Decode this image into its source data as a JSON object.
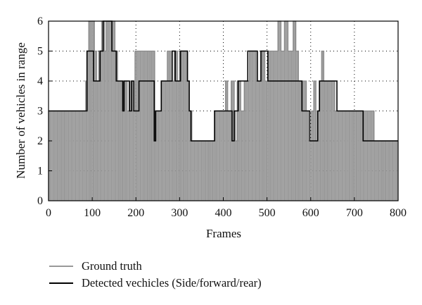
{
  "chart_data": {
    "type": "line",
    "xlabel": "Frames",
    "ylabel": "Number of vehicles in range",
    "xlim": [
      0,
      800
    ],
    "ylim": [
      0,
      6
    ],
    "xticks": [
      0,
      100,
      200,
      300,
      400,
      500,
      600,
      700,
      800
    ],
    "yticks": [
      0,
      1,
      2,
      3,
      4,
      5,
      6
    ],
    "grid": true,
    "legend_position": "bottom-left, below plot",
    "series": [
      {
        "name": "Ground truth",
        "color": "#999999",
        "render": "dense vertical bars (filled step)",
        "steps": [
          [
            0,
            3
          ],
          [
            80,
            3
          ],
          [
            85,
            4
          ],
          [
            88,
            5
          ],
          [
            92,
            6
          ],
          [
            105,
            5
          ],
          [
            110,
            4
          ],
          [
            115,
            5
          ],
          [
            122,
            6
          ],
          [
            128,
            5
          ],
          [
            132,
            6
          ],
          [
            145,
            6
          ],
          [
            152,
            5
          ],
          [
            158,
            4
          ],
          [
            168,
            3
          ],
          [
            172,
            4
          ],
          [
            180,
            3
          ],
          [
            185,
            4
          ],
          [
            192,
            3
          ],
          [
            198,
            5
          ],
          [
            210,
            5
          ],
          [
            225,
            5
          ],
          [
            243,
            2
          ],
          [
            247,
            3
          ],
          [
            258,
            4
          ],
          [
            265,
            4
          ],
          [
            272,
            5
          ],
          [
            280,
            4
          ],
          [
            288,
            5
          ],
          [
            295,
            4
          ],
          [
            300,
            5
          ],
          [
            310,
            5
          ],
          [
            318,
            4
          ],
          [
            322,
            3
          ],
          [
            328,
            2
          ],
          [
            380,
            3
          ],
          [
            398,
            3
          ],
          [
            405,
            4
          ],
          [
            410,
            3
          ],
          [
            418,
            4
          ],
          [
            425,
            3
          ],
          [
            428,
            2
          ],
          [
            432,
            4
          ],
          [
            440,
            3
          ],
          [
            448,
            4
          ],
          [
            455,
            4
          ],
          [
            460,
            5
          ],
          [
            475,
            4
          ],
          [
            480,
            4
          ],
          [
            488,
            5
          ],
          [
            495,
            4
          ],
          [
            502,
            5
          ],
          [
            515,
            5
          ],
          [
            525,
            6
          ],
          [
            532,
            5
          ],
          [
            540,
            6
          ],
          [
            548,
            5
          ],
          [
            560,
            6
          ],
          [
            566,
            5
          ],
          [
            572,
            4
          ],
          [
            580,
            4
          ],
          [
            590,
            3
          ],
          [
            595,
            2
          ],
          [
            602,
            3
          ],
          [
            607,
            4
          ],
          [
            612,
            2
          ],
          [
            615,
            3
          ],
          [
            620,
            4
          ],
          [
            625,
            5
          ],
          [
            630,
            4
          ],
          [
            640,
            4
          ],
          [
            655,
            3
          ],
          [
            670,
            3
          ],
          [
            700,
            3
          ],
          [
            720,
            3
          ],
          [
            735,
            3
          ],
          [
            745,
            2
          ],
          [
            800,
            2
          ]
        ]
      },
      {
        "name": "Detected vechicles (Side/forward/rear)",
        "color": "#000000",
        "render": "step line",
        "steps": [
          [
            0,
            3
          ],
          [
            83,
            3
          ],
          [
            88,
            5
          ],
          [
            103,
            4
          ],
          [
            118,
            5
          ],
          [
            125,
            6
          ],
          [
            140,
            6
          ],
          [
            145,
            5
          ],
          [
            155,
            4
          ],
          [
            170,
            3
          ],
          [
            173,
            4
          ],
          [
            185,
            3
          ],
          [
            190,
            4
          ],
          [
            195,
            3
          ],
          [
            207,
            4
          ],
          [
            242,
            2
          ],
          [
            245,
            3
          ],
          [
            258,
            4
          ],
          [
            283,
            5
          ],
          [
            290,
            4
          ],
          [
            302,
            5
          ],
          [
            312,
            5
          ],
          [
            318,
            4
          ],
          [
            322,
            3
          ],
          [
            326,
            2
          ],
          [
            380,
            3
          ],
          [
            420,
            2
          ],
          [
            425,
            3
          ],
          [
            434,
            4
          ],
          [
            452,
            4
          ],
          [
            456,
            5
          ],
          [
            478,
            4
          ],
          [
            486,
            5
          ],
          [
            502,
            4
          ],
          [
            570,
            4
          ],
          [
            580,
            3
          ],
          [
            598,
            2
          ],
          [
            616,
            3
          ],
          [
            620,
            4
          ],
          [
            635,
            4
          ],
          [
            660,
            3
          ],
          [
            720,
            2
          ],
          [
            800,
            2
          ]
        ]
      }
    ]
  }
}
